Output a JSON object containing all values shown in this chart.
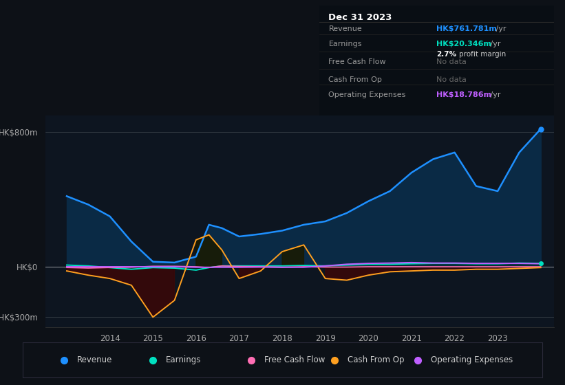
{
  "bg_color": "#0d1117",
  "chart_bg": "#0d1520",
  "years": [
    2013.0,
    2013.5,
    2014.0,
    2014.5,
    2015.0,
    2015.5,
    2016.0,
    2016.3,
    2016.6,
    2017.0,
    2017.5,
    2018.0,
    2018.5,
    2019.0,
    2019.5,
    2020.0,
    2020.5,
    2021.0,
    2021.5,
    2022.0,
    2022.5,
    2023.0,
    2023.5,
    2024.0
  ],
  "revenue": [
    420,
    370,
    300,
    150,
    30,
    25,
    60,
    250,
    230,
    180,
    195,
    215,
    250,
    270,
    320,
    390,
    450,
    560,
    640,
    680,
    480,
    450,
    680,
    820
  ],
  "earnings": [
    10,
    5,
    -5,
    -15,
    -5,
    -8,
    -20,
    -5,
    5,
    5,
    5,
    5,
    8,
    5,
    10,
    15,
    15,
    18,
    20,
    20,
    18,
    18,
    22,
    20
  ],
  "free_cash": [
    -5,
    -8,
    -5,
    -3,
    3,
    3,
    0,
    -5,
    5,
    2,
    0,
    -3,
    0,
    -2,
    -2,
    0,
    0,
    0,
    0,
    0,
    0,
    0,
    0,
    0
  ],
  "cash_op": [
    -25,
    -50,
    -70,
    -110,
    -300,
    -200,
    160,
    190,
    100,
    -70,
    -25,
    90,
    130,
    -70,
    -80,
    -50,
    -30,
    -25,
    -20,
    -20,
    -15,
    -15,
    -10,
    -5
  ],
  "op_exp": [
    0,
    0,
    0,
    0,
    0,
    0,
    -3,
    -3,
    -3,
    -3,
    -2,
    -3,
    -3,
    5,
    15,
    20,
    22,
    25,
    22,
    22,
    20,
    20,
    20,
    18
  ],
  "revenue_color": "#1e90ff",
  "earnings_color": "#00e0c0",
  "free_cash_color": "#ff6eb4",
  "cash_op_color": "#ffa020",
  "op_exp_color": "#bf5fff",
  "revenue_fill": "#0a2a45",
  "cash_op_fill_pos": "#1a1a00",
  "cash_op_fill_neg": "#3a0808",
  "earnings_fill": "#003030",
  "ylim_min": -360,
  "ylim_max": 900,
  "ytick_values": [
    800,
    0,
    -300
  ],
  "ytick_labels": [
    "HK$800m",
    "HK$0",
    "-HK$300m"
  ],
  "xlim_min": 2012.5,
  "xlim_max": 2024.3,
  "xtick_years": [
    2014,
    2015,
    2016,
    2017,
    2018,
    2019,
    2020,
    2021,
    2022,
    2023
  ],
  "info_box": {
    "title": "Dec 31 2023",
    "rows": [
      {
        "label": "Revenue",
        "value": "HK$761.781m",
        "suffix": " /yr",
        "value_color": "#1e90ff",
        "extra": null
      },
      {
        "label": "Earnings",
        "value": "HK$20.346m",
        "suffix": " /yr",
        "value_color": "#00e0c0",
        "extra": "2.7% profit margin"
      },
      {
        "label": "Free Cash Flow",
        "value": "No data",
        "suffix": "",
        "value_color": "#666666",
        "extra": null
      },
      {
        "label": "Cash From Op",
        "value": "No data",
        "suffix": "",
        "value_color": "#666666",
        "extra": null
      },
      {
        "label": "Operating Expenses",
        "value": "HK$18.786m",
        "suffix": " /yr",
        "value_color": "#bf5fff",
        "extra": null
      }
    ]
  },
  "legend_items": [
    {
      "label": "Revenue",
      "color": "#1e90ff"
    },
    {
      "label": "Earnings",
      "color": "#00e0c0"
    },
    {
      "label": "Free Cash Flow",
      "color": "#ff6eb4"
    },
    {
      "label": "Cash From Op",
      "color": "#ffa020"
    },
    {
      "label": "Operating Expenses",
      "color": "#bf5fff"
    }
  ]
}
